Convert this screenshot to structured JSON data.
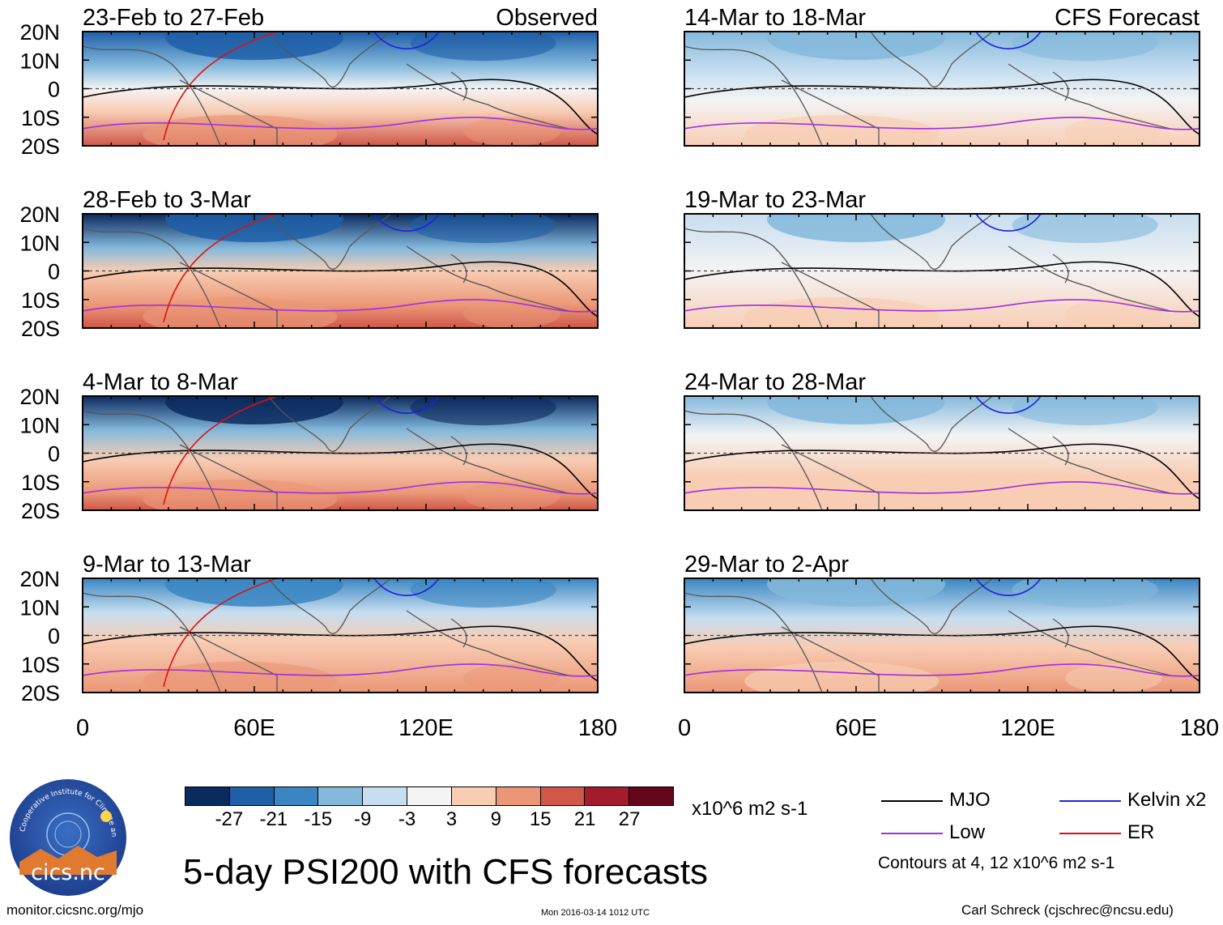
{
  "figure": {
    "title": "5-day PSI200 with CFS forecasts",
    "units": "x10^6 m2 s-1",
    "footer_left": "monitor.cicsnc.org/mjo",
    "footer_mid": "Mon 2016-03-14 1012 UTC",
    "footer_right": "Carl Schreck (cjschrec@ncsu.edu)",
    "logo_text": "cics.nc",
    "logo_ring_text": "Cooperative Institute for Climate and Satellites",
    "column_headers": [
      "Observed",
      "CFS Forecast"
    ]
  },
  "legend": {
    "items": [
      {
        "label": "MJO",
        "color": "#000000"
      },
      {
        "label": "Kelvin x2",
        "color": "#1f1fe0"
      },
      {
        "label": "Low",
        "color": "#a030e0"
      },
      {
        "label": "ER",
        "color": "#e01010"
      }
    ],
    "contour_note": "Contours at 4, 12 x10^6 m2 s-1"
  },
  "colorbar": {
    "ticks": [
      "-27",
      "-21",
      "-15",
      "-9",
      "-3",
      "3",
      "9",
      "15",
      "21",
      "27"
    ],
    "colors": [
      "#0b2a5e",
      "#1f5fa8",
      "#3b86c2",
      "#84b9dc",
      "#c7def0",
      "#f4f4f4",
      "#f8cdb4",
      "#eb9777",
      "#d0574a",
      "#a31b2c",
      "#64071b"
    ]
  },
  "chart_data": {
    "type": "heatmap",
    "variable": "PSI200 5-day mean anomaly",
    "x_ticks": [
      "0",
      "60E",
      "120E",
      "180"
    ],
    "y_ticks": [
      "20N",
      "10N",
      "0",
      "10S",
      "20S"
    ],
    "xlim": [
      0,
      180
    ],
    "ylim": [
      -20,
      20
    ],
    "panels": [
      {
        "title": "23-Feb to 27-Feb",
        "kind": "Observed",
        "north_anomaly": -24,
        "south_anomaly": 15
      },
      {
        "title": "28-Feb to 3-Mar",
        "kind": "Observed",
        "north_anomaly": -24,
        "south_anomaly": 15
      },
      {
        "title": "4-Mar to 8-Mar",
        "kind": "Observed",
        "north_anomaly": -27,
        "south_anomaly": 15
      },
      {
        "title": "9-Mar to 13-Mar",
        "kind": "Observed",
        "north_anomaly": -18,
        "south_anomaly": 12
      },
      {
        "title": "14-Mar to 18-Mar",
        "kind": "CFS Forecast",
        "north_anomaly": -12,
        "south_anomaly": 6
      },
      {
        "title": "19-Mar to 23-Mar",
        "kind": "CFS Forecast",
        "north_anomaly": -9,
        "south_anomaly": 6
      },
      {
        "title": "24-Mar to 28-Mar",
        "kind": "CFS Forecast",
        "north_anomaly": -9,
        "south_anomaly": 6
      },
      {
        "title": "29-Mar to 2-Apr",
        "kind": "CFS Forecast",
        "north_anomaly": -12,
        "south_anomaly": 9
      }
    ]
  }
}
